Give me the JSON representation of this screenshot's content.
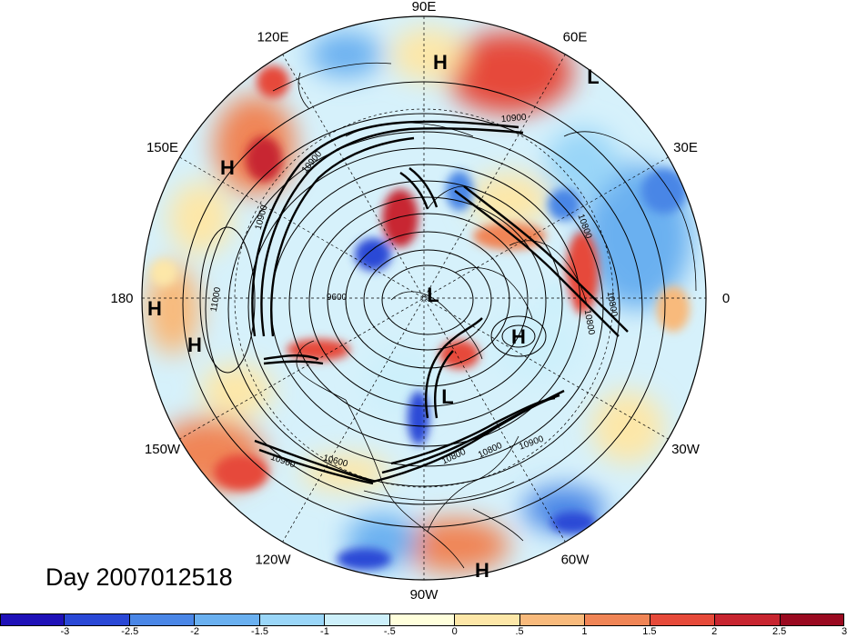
{
  "map": {
    "longitude_labels": [
      {
        "text": "90E",
        "angle": 90
      },
      {
        "text": "60E",
        "angle": 60
      },
      {
        "text": "30E",
        "angle": 30
      },
      {
        "text": "0",
        "angle": 0
      },
      {
        "text": "30W",
        "angle": -30
      },
      {
        "text": "60W",
        "angle": -60
      },
      {
        "text": "90W",
        "angle": -90
      },
      {
        "text": "120W",
        "angle": -120
      },
      {
        "text": "150W",
        "angle": -150
      },
      {
        "text": "180",
        "angle": 180
      },
      {
        "text": "150E",
        "angle": 150
      },
      {
        "text": "120E",
        "angle": 120
      }
    ],
    "pressure_centers": [
      "H",
      "L",
      "H",
      "H",
      "H",
      "L",
      "H",
      "L",
      "H"
    ],
    "contour_labels": [
      "10900",
      "10900",
      "10800",
      "10800",
      "10800",
      "10800",
      "10900",
      "10600",
      "10900",
      "10900",
      "11000",
      "9600",
      "10800"
    ]
  },
  "date_label": "Day 2007012518",
  "colorbar": {
    "colors": [
      "#1f11b8",
      "#2a48d6",
      "#4a86e6",
      "#6ab0f0",
      "#9ad6f8",
      "#cdf0fb",
      "#ffffdc",
      "#fde7a8",
      "#f8ba7c",
      "#f08556",
      "#e64a3a",
      "#c82530",
      "#9a0a20"
    ],
    "tick_labels": [
      "-3",
      "-2.5",
      "-2",
      "-1.5",
      "-1",
      "-.5",
      "0",
      ".5",
      "1",
      "1.5",
      "2",
      "2.5",
      "3"
    ]
  }
}
